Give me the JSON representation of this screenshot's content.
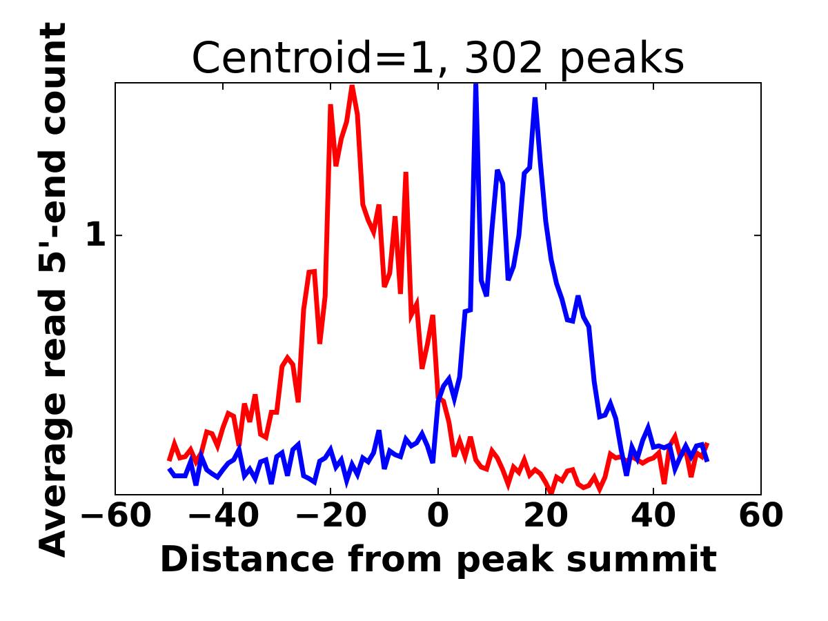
{
  "chart_data": {
    "type": "line",
    "title": "Centroid=1, 302 peaks",
    "x_label": "Distance from peak summit",
    "y_label": "Average read 5'-end count",
    "yscale": "log",
    "xlim": [
      -60,
      60
    ],
    "ylim": [
      0.45,
      1.6
    ],
    "xticks": [
      {
        "value": -60,
        "label": "−60"
      },
      {
        "value": -40,
        "label": "−40"
      },
      {
        "value": -20,
        "label": "−20"
      },
      0,
      20,
      40,
      60
    ],
    "yticks": [
      1
    ],
    "x": [
      -50,
      -49,
      -48,
      -47,
      -46,
      -45,
      -44,
      -43,
      -42,
      -41,
      -40,
      -39,
      -38,
      -37,
      -36,
      -35,
      -34,
      -33,
      -32,
      -31,
      -30,
      -29,
      -28,
      -27,
      -26,
      -25,
      -24,
      -23,
      -22,
      -21,
      -20,
      -19,
      -18,
      -17,
      -16,
      -15,
      -14,
      -13,
      -12,
      -11,
      -10,
      -9,
      -8,
      -7,
      -6,
      -5,
      -4,
      -3,
      -2,
      -1,
      0,
      1,
      2,
      3,
      4,
      5,
      6,
      7,
      8,
      9,
      10,
      11,
      12,
      13,
      14,
      15,
      16,
      17,
      18,
      19,
      20,
      21,
      22,
      23,
      24,
      25,
      26,
      27,
      28,
      29,
      30,
      31,
      32,
      33,
      34,
      35,
      36,
      37,
      38,
      39,
      40,
      41,
      42,
      43,
      44,
      45,
      46,
      47,
      48,
      49,
      50
    ],
    "series": [
      {
        "color": "#ff0000",
        "values": [
          0.499,
          0.526,
          0.504,
          0.506,
          0.517,
          0.498,
          0.512,
          0.546,
          0.543,
          0.523,
          0.553,
          0.578,
          0.573,
          0.523,
          0.596,
          0.563,
          0.613,
          0.542,
          0.537,
          0.58,
          0.58,
          0.668,
          0.686,
          0.672,
          0.598,
          0.795,
          0.893,
          0.895,
          0.716,
          0.829,
          1.498,
          1.237,
          1.347,
          1.42,
          1.589,
          1.451,
          1.1,
          1.048,
          1.011,
          1.1,
          0.853,
          0.89,
          1.061,
          0.835,
          1.216,
          0.783,
          0.809,
          0.663,
          0.715,
          0.783,
          0.607,
          0.6,
          0.563,
          0.506,
          0.531,
          0.506,
          0.538,
          0.501,
          0.49,
          0.487,
          0.515,
          0.504,
          0.486,
          0.465,
          0.49,
          0.482,
          0.501,
          0.478,
          0.486,
          0.48,
          0.467,
          0.451,
          0.475,
          0.47,
          0.484,
          0.486,
          0.465,
          0.46,
          0.463,
          0.475,
          0.458,
          0.475,
          0.51,
          0.504,
          0.506,
          0.498,
          0.506,
          0.501,
          0.496,
          0.501,
          0.504,
          0.512,
          0.465,
          0.523,
          0.538,
          0.506,
          0.517,
          0.475,
          0.512,
          0.506,
          0.528
        ]
      },
      {
        "color": "#0000ff",
        "values": [
          0.488,
          0.477,
          0.477,
          0.477,
          0.498,
          0.463,
          0.506,
          0.486,
          0.48,
          0.475,
          0.486,
          0.496,
          0.501,
          0.517,
          0.477,
          0.487,
          0.473,
          0.498,
          0.501,
          0.465,
          0.506,
          0.512,
          0.477,
          0.517,
          0.525,
          0.477,
          0.473,
          0.468,
          0.499,
          0.504,
          0.517,
          0.49,
          0.501,
          0.47,
          0.494,
          0.479,
          0.504,
          0.498,
          0.512,
          0.549,
          0.487,
          0.515,
          0.509,
          0.506,
          0.534,
          0.523,
          0.528,
          0.543,
          0.523,
          0.496,
          0.6,
          0.629,
          0.643,
          0.605,
          0.647,
          0.791,
          0.795,
          1.596,
          0.871,
          0.829,
          1.021,
          1.224,
          1.173,
          0.871,
          0.909,
          1.0,
          1.211,
          1.232,
          1.53,
          1.25,
          1.043,
          0.928,
          0.862,
          0.822,
          0.771,
          0.768,
          0.831,
          0.778,
          0.755,
          0.637,
          0.572,
          0.575,
          0.596,
          0.569,
          0.517,
          0.477,
          0.521,
          0.503,
          0.532,
          0.553,
          0.521,
          0.523,
          0.52,
          0.524,
          0.487,
          0.506,
          0.523,
          0.506,
          0.523,
          0.525,
          0.498
        ]
      }
    ]
  }
}
